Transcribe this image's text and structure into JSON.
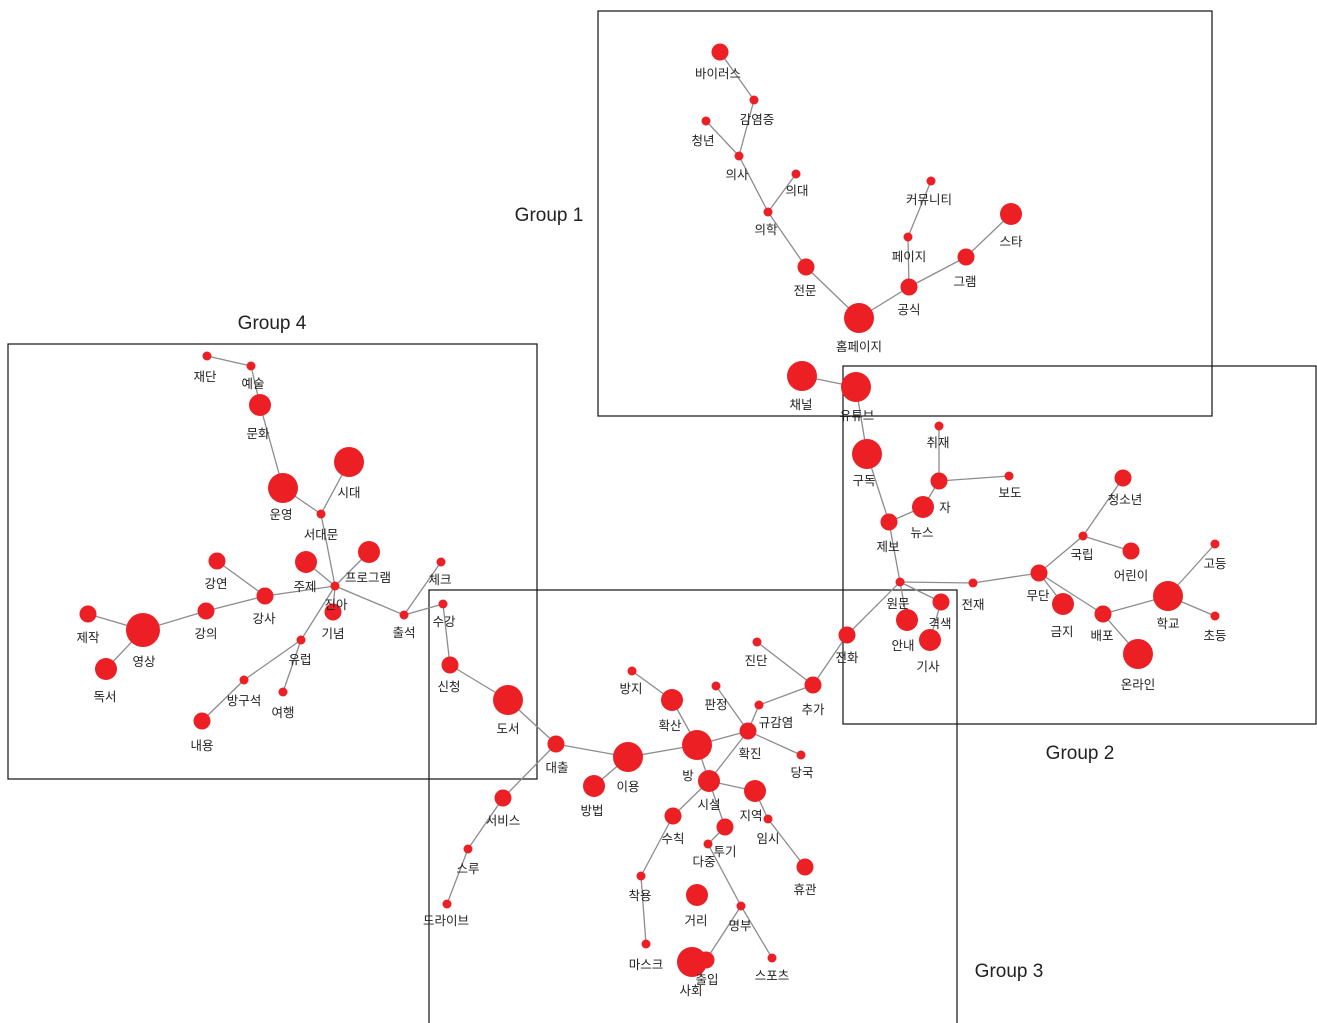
{
  "colors": {
    "node": "#ec1f24",
    "edge": "#8c8c8c",
    "box": "#111111",
    "text": "#222222"
  },
  "groups": [
    {
      "id": "g1",
      "label": "Group 1"
    },
    {
      "id": "g2",
      "label": "Group 2"
    },
    {
      "id": "g3",
      "label": "Group 3"
    },
    {
      "id": "g4",
      "label": "Group 4"
    }
  ],
  "nodes": [
    {
      "id": "바이러스",
      "label": "바이러스",
      "size": 2
    },
    {
      "id": "감염증",
      "label": "감염증",
      "size": 1
    },
    {
      "id": "청년",
      "label": "청년",
      "size": 1
    },
    {
      "id": "의사",
      "label": "의사",
      "size": 1
    },
    {
      "id": "의대",
      "label": "의대",
      "size": 1
    },
    {
      "id": "의학",
      "label": "의학",
      "size": 1
    },
    {
      "id": "전문",
      "label": "전문",
      "size": 2
    },
    {
      "id": "커뮤니티",
      "label": "커뮤니티",
      "size": 1
    },
    {
      "id": "페이지",
      "label": "페이지",
      "size": 1
    },
    {
      "id": "스타",
      "label": "스타",
      "size": 3
    },
    {
      "id": "그램",
      "label": "그램",
      "size": 2
    },
    {
      "id": "공식",
      "label": "공식",
      "size": 2
    },
    {
      "id": "홈페이지",
      "label": "홈페이지",
      "size": 4
    },
    {
      "id": "채널",
      "label": "채널",
      "size": 4
    },
    {
      "id": "유튜브",
      "label": "유튜브",
      "size": 4
    },
    {
      "id": "취재",
      "label": "취재",
      "size": 1
    },
    {
      "id": "구독",
      "label": "구독",
      "size": 4
    },
    {
      "id": "자",
      "label": "자",
      "size": 2
    },
    {
      "id": "보도",
      "label": "보도",
      "size": 1
    },
    {
      "id": "뉴스",
      "label": "뉴스",
      "size": 3
    },
    {
      "id": "제보",
      "label": "제보",
      "size": 2
    },
    {
      "id": "원문",
      "label": "원문",
      "size": 1
    },
    {
      "id": "전재",
      "label": "전재",
      "size": 1
    },
    {
      "id": "격색",
      "label": "격색",
      "size": 2
    },
    {
      "id": "안내",
      "label": "안내",
      "size": 3
    },
    {
      "id": "기사",
      "label": "기사",
      "size": 3
    },
    {
      "id": "청소년",
      "label": "청소년",
      "size": 2
    },
    {
      "id": "국립",
      "label": "국립",
      "size": 1
    },
    {
      "id": "어린이",
      "label": "어린이",
      "size": 2
    },
    {
      "id": "무단",
      "label": "무단",
      "size": 2
    },
    {
      "id": "금지",
      "label": "금지",
      "size": 3
    },
    {
      "id": "배포",
      "label": "배포",
      "size": 2
    },
    {
      "id": "학교",
      "label": "학교",
      "size": 4
    },
    {
      "id": "고등",
      "label": "고등",
      "size": 1
    },
    {
      "id": "초등",
      "label": "초등",
      "size": 1
    },
    {
      "id": "온라인",
      "label": "온라인",
      "size": 4
    },
    {
      "id": "전화",
      "label": "전화",
      "size": 2
    },
    {
      "id": "진단",
      "label": "진단",
      "size": 1
    },
    {
      "id": "추가",
      "label": "추가",
      "size": 2
    },
    {
      "id": "방지",
      "label": "방지",
      "size": 1
    },
    {
      "id": "판정",
      "label": "판정",
      "size": 1
    },
    {
      "id": "규감염",
      "label": "규감염",
      "size": 1
    },
    {
      "id": "확산",
      "label": "확산",
      "size": 3
    },
    {
      "id": "확진",
      "label": "확진",
      "size": 2
    },
    {
      "id": "당국",
      "label": "당국",
      "size": 1
    },
    {
      "id": "방",
      "label": "방",
      "size": 4
    },
    {
      "id": "이용",
      "label": "이용",
      "size": 4
    },
    {
      "id": "시설",
      "label": "시설",
      "size": 3
    },
    {
      "id": "지역",
      "label": "지역",
      "size": 3
    },
    {
      "id": "임시",
      "label": "임시",
      "size": 1
    },
    {
      "id": "휴관",
      "label": "휴관",
      "size": 2
    },
    {
      "id": "방법",
      "label": "방법",
      "size": 3
    },
    {
      "id": "수칙",
      "label": "수칙",
      "size": 2
    },
    {
      "id": "투기",
      "label": "투기",
      "size": 2
    },
    {
      "id": "다중",
      "label": "다중",
      "size": 1
    },
    {
      "id": "착용",
      "label": "착용",
      "size": 1
    },
    {
      "id": "거리",
      "label": "거리",
      "size": 3
    },
    {
      "id": "명부",
      "label": "명부",
      "size": 1
    },
    {
      "id": "마스크",
      "label": "마스크",
      "size": 1
    },
    {
      "id": "사회",
      "label": "사회",
      "size": 4
    },
    {
      "id": "출입",
      "label": "출입",
      "size": 2
    },
    {
      "id": "스포츠",
      "label": "스포츠",
      "size": 1
    },
    {
      "id": "대출",
      "label": "대출",
      "size": 2
    },
    {
      "id": "도서",
      "label": "도서",
      "size": 4
    },
    {
      "id": "신청",
      "label": "신청",
      "size": 2
    },
    {
      "id": "서비스",
      "label": "서비스",
      "size": 2
    },
    {
      "id": "스루",
      "label": "스루",
      "size": 1
    },
    {
      "id": "드라이브",
      "label": "드라이브",
      "size": 1
    },
    {
      "id": "재단",
      "label": "재단",
      "size": 1
    },
    {
      "id": "예술",
      "label": "예술",
      "size": 1
    },
    {
      "id": "문화",
      "label": "문화",
      "size": 3
    },
    {
      "id": "시대",
      "label": "시대",
      "size": 4
    },
    {
      "id": "운영",
      "label": "운영",
      "size": 4
    },
    {
      "id": "서대문",
      "label": "서대문",
      "size": 1
    },
    {
      "id": "프로그램",
      "label": "프로그램",
      "size": 3
    },
    {
      "id": "체크",
      "label": "체크",
      "size": 1
    },
    {
      "id": "강연",
      "label": "강연",
      "size": 2
    },
    {
      "id": "주제",
      "label": "주제",
      "size": 3
    },
    {
      "id": "강사",
      "label": "강사",
      "size": 2
    },
    {
      "id": "진아",
      "label": "진아",
      "size": 1
    },
    {
      "id": "기념",
      "label": "기념",
      "size": 2
    },
    {
      "id": "출석",
      "label": "출석",
      "size": 1
    },
    {
      "id": "수강",
      "label": "수강",
      "size": 1
    },
    {
      "id": "제작",
      "label": "제작",
      "size": 2
    },
    {
      "id": "영상",
      "label": "영상",
      "size": 5
    },
    {
      "id": "강의",
      "label": "강의",
      "size": 2
    },
    {
      "id": "유럽",
      "label": "유럽",
      "size": 1
    },
    {
      "id": "독서",
      "label": "독서",
      "size": 3
    },
    {
      "id": "방구석",
      "label": "방구석",
      "size": 1
    },
    {
      "id": "여행",
      "label": "여행",
      "size": 1
    },
    {
      "id": "내용",
      "label": "내용",
      "size": 2
    }
  ],
  "edges": [
    [
      "바이러스",
      "감염증"
    ],
    [
      "감염증",
      "의사"
    ],
    [
      "청년",
      "의사"
    ],
    [
      "의사",
      "의학"
    ],
    [
      "의대",
      "의학"
    ],
    [
      "의학",
      "전문"
    ],
    [
      "전문",
      "홈페이지"
    ],
    [
      "커뮤니티",
      "페이지"
    ],
    [
      "페이지",
      "공식"
    ],
    [
      "스타",
      "그램"
    ],
    [
      "그램",
      "공식"
    ],
    [
      "공식",
      "홈페이지"
    ],
    [
      "채널",
      "유튜브"
    ],
    [
      "유튜브",
      "구독"
    ],
    [
      "취재",
      "자"
    ],
    [
      "자",
      "보도"
    ],
    [
      "자",
      "뉴스"
    ],
    [
      "구독",
      "제보"
    ],
    [
      "뉴스",
      "제보"
    ],
    [
      "제보",
      "원문"
    ],
    [
      "원문",
      "전재"
    ],
    [
      "원문",
      "격색"
    ],
    [
      "원문",
      "안내"
    ],
    [
      "원문",
      "전화"
    ],
    [
      "격색",
      "기사"
    ],
    [
      "전재",
      "무단"
    ],
    [
      "무단",
      "국립"
    ],
    [
      "국립",
      "청소년"
    ],
    [
      "국립",
      "어린이"
    ],
    [
      "무단",
      "금지"
    ],
    [
      "무단",
      "배포"
    ],
    [
      "배포",
      "학교"
    ],
    [
      "학교",
      "고등"
    ],
    [
      "학교",
      "초등"
    ],
    [
      "배포",
      "온라인"
    ],
    [
      "전화",
      "추가"
    ],
    [
      "진단",
      "추가"
    ],
    [
      "추가",
      "규감염"
    ],
    [
      "규감염",
      "확진"
    ],
    [
      "판정",
      "확진"
    ],
    [
      "방지",
      "확산"
    ],
    [
      "확산",
      "방"
    ],
    [
      "확진",
      "방"
    ],
    [
      "확진",
      "당국"
    ],
    [
      "확진",
      "시설"
    ],
    [
      "방",
      "이용"
    ],
    [
      "방",
      "시설"
    ],
    [
      "시설",
      "지역"
    ],
    [
      "지역",
      "임시"
    ],
    [
      "임시",
      "휴관"
    ],
    [
      "시설",
      "수칙"
    ],
    [
      "시설",
      "투기"
    ],
    [
      "수칙",
      "착용"
    ],
    [
      "착용",
      "마스크"
    ],
    [
      "투기",
      "다중"
    ],
    [
      "다중",
      "명부"
    ],
    [
      "명부",
      "출입"
    ],
    [
      "명부",
      "스포츠"
    ],
    [
      "이용",
      "방법"
    ],
    [
      "이용",
      "대출"
    ],
    [
      "대출",
      "도서"
    ],
    [
      "대출",
      "서비스"
    ],
    [
      "서비스",
      "스루"
    ],
    [
      "스루",
      "드라이브"
    ],
    [
      "도서",
      "신청"
    ],
    [
      "신청",
      "수강"
    ],
    [
      "수강",
      "출석"
    ],
    [
      "체크",
      "출석"
    ],
    [
      "출석",
      "진아"
    ],
    [
      "재단",
      "예술"
    ],
    [
      "예술",
      "문화"
    ],
    [
      "문화",
      "운영"
    ],
    [
      "운영",
      "서대문"
    ],
    [
      "시대",
      "서대문"
    ],
    [
      "서대문",
      "진아"
    ],
    [
      "프로그램",
      "진아"
    ],
    [
      "주제",
      "진아"
    ],
    [
      "강사",
      "진아"
    ],
    [
      "진아",
      "기념"
    ],
    [
      "진아",
      "유럽"
    ],
    [
      "유럽",
      "방구석"
    ],
    [
      "유럽",
      "여행"
    ],
    [
      "방구석",
      "내용"
    ],
    [
      "강연",
      "강사"
    ],
    [
      "강사",
      "강의"
    ],
    [
      "강의",
      "영상"
    ],
    [
      "제작",
      "영상"
    ],
    [
      "영상",
      "독서"
    ]
  ]
}
